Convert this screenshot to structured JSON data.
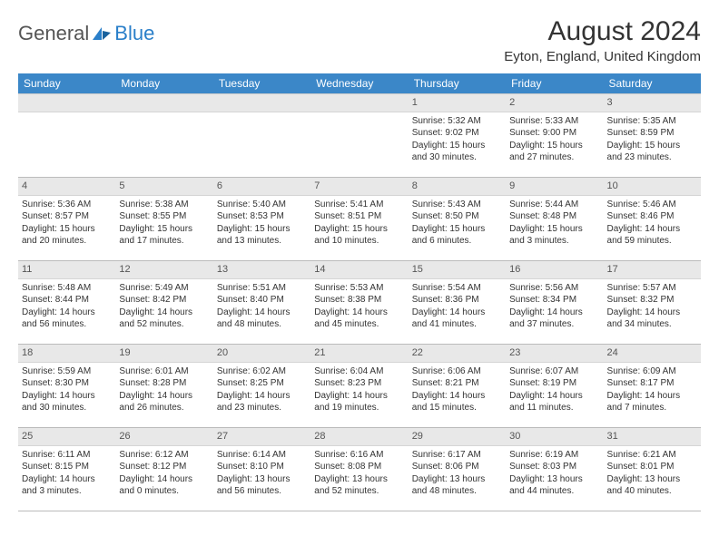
{
  "logo": {
    "general": "General",
    "blue": "Blue"
  },
  "title": "August 2024",
  "location": "Eyton, England, United Kingdom",
  "colors": {
    "header_bg": "#3b87c8",
    "header_text": "#ffffff",
    "daynum_bg": "#e8e8e8",
    "border": "#bbbbbb",
    "logo_blue": "#2a7fc9"
  },
  "weekdays": [
    "Sunday",
    "Monday",
    "Tuesday",
    "Wednesday",
    "Thursday",
    "Friday",
    "Saturday"
  ],
  "weeks": [
    [
      {
        "day": "",
        "sunrise": "",
        "sunset": "",
        "daylight": ""
      },
      {
        "day": "",
        "sunrise": "",
        "sunset": "",
        "daylight": ""
      },
      {
        "day": "",
        "sunrise": "",
        "sunset": "",
        "daylight": ""
      },
      {
        "day": "",
        "sunrise": "",
        "sunset": "",
        "daylight": ""
      },
      {
        "day": "1",
        "sunrise": "Sunrise: 5:32 AM",
        "sunset": "Sunset: 9:02 PM",
        "daylight": "Daylight: 15 hours and 30 minutes."
      },
      {
        "day": "2",
        "sunrise": "Sunrise: 5:33 AM",
        "sunset": "Sunset: 9:00 PM",
        "daylight": "Daylight: 15 hours and 27 minutes."
      },
      {
        "day": "3",
        "sunrise": "Sunrise: 5:35 AM",
        "sunset": "Sunset: 8:59 PM",
        "daylight": "Daylight: 15 hours and 23 minutes."
      }
    ],
    [
      {
        "day": "4",
        "sunrise": "Sunrise: 5:36 AM",
        "sunset": "Sunset: 8:57 PM",
        "daylight": "Daylight: 15 hours and 20 minutes."
      },
      {
        "day": "5",
        "sunrise": "Sunrise: 5:38 AM",
        "sunset": "Sunset: 8:55 PM",
        "daylight": "Daylight: 15 hours and 17 minutes."
      },
      {
        "day": "6",
        "sunrise": "Sunrise: 5:40 AM",
        "sunset": "Sunset: 8:53 PM",
        "daylight": "Daylight: 15 hours and 13 minutes."
      },
      {
        "day": "7",
        "sunrise": "Sunrise: 5:41 AM",
        "sunset": "Sunset: 8:51 PM",
        "daylight": "Daylight: 15 hours and 10 minutes."
      },
      {
        "day": "8",
        "sunrise": "Sunrise: 5:43 AM",
        "sunset": "Sunset: 8:50 PM",
        "daylight": "Daylight: 15 hours and 6 minutes."
      },
      {
        "day": "9",
        "sunrise": "Sunrise: 5:44 AM",
        "sunset": "Sunset: 8:48 PM",
        "daylight": "Daylight: 15 hours and 3 minutes."
      },
      {
        "day": "10",
        "sunrise": "Sunrise: 5:46 AM",
        "sunset": "Sunset: 8:46 PM",
        "daylight": "Daylight: 14 hours and 59 minutes."
      }
    ],
    [
      {
        "day": "11",
        "sunrise": "Sunrise: 5:48 AM",
        "sunset": "Sunset: 8:44 PM",
        "daylight": "Daylight: 14 hours and 56 minutes."
      },
      {
        "day": "12",
        "sunrise": "Sunrise: 5:49 AM",
        "sunset": "Sunset: 8:42 PM",
        "daylight": "Daylight: 14 hours and 52 minutes."
      },
      {
        "day": "13",
        "sunrise": "Sunrise: 5:51 AM",
        "sunset": "Sunset: 8:40 PM",
        "daylight": "Daylight: 14 hours and 48 minutes."
      },
      {
        "day": "14",
        "sunrise": "Sunrise: 5:53 AM",
        "sunset": "Sunset: 8:38 PM",
        "daylight": "Daylight: 14 hours and 45 minutes."
      },
      {
        "day": "15",
        "sunrise": "Sunrise: 5:54 AM",
        "sunset": "Sunset: 8:36 PM",
        "daylight": "Daylight: 14 hours and 41 minutes."
      },
      {
        "day": "16",
        "sunrise": "Sunrise: 5:56 AM",
        "sunset": "Sunset: 8:34 PM",
        "daylight": "Daylight: 14 hours and 37 minutes."
      },
      {
        "day": "17",
        "sunrise": "Sunrise: 5:57 AM",
        "sunset": "Sunset: 8:32 PM",
        "daylight": "Daylight: 14 hours and 34 minutes."
      }
    ],
    [
      {
        "day": "18",
        "sunrise": "Sunrise: 5:59 AM",
        "sunset": "Sunset: 8:30 PM",
        "daylight": "Daylight: 14 hours and 30 minutes."
      },
      {
        "day": "19",
        "sunrise": "Sunrise: 6:01 AM",
        "sunset": "Sunset: 8:28 PM",
        "daylight": "Daylight: 14 hours and 26 minutes."
      },
      {
        "day": "20",
        "sunrise": "Sunrise: 6:02 AM",
        "sunset": "Sunset: 8:25 PM",
        "daylight": "Daylight: 14 hours and 23 minutes."
      },
      {
        "day": "21",
        "sunrise": "Sunrise: 6:04 AM",
        "sunset": "Sunset: 8:23 PM",
        "daylight": "Daylight: 14 hours and 19 minutes."
      },
      {
        "day": "22",
        "sunrise": "Sunrise: 6:06 AM",
        "sunset": "Sunset: 8:21 PM",
        "daylight": "Daylight: 14 hours and 15 minutes."
      },
      {
        "day": "23",
        "sunrise": "Sunrise: 6:07 AM",
        "sunset": "Sunset: 8:19 PM",
        "daylight": "Daylight: 14 hours and 11 minutes."
      },
      {
        "day": "24",
        "sunrise": "Sunrise: 6:09 AM",
        "sunset": "Sunset: 8:17 PM",
        "daylight": "Daylight: 14 hours and 7 minutes."
      }
    ],
    [
      {
        "day": "25",
        "sunrise": "Sunrise: 6:11 AM",
        "sunset": "Sunset: 8:15 PM",
        "daylight": "Daylight: 14 hours and 3 minutes."
      },
      {
        "day": "26",
        "sunrise": "Sunrise: 6:12 AM",
        "sunset": "Sunset: 8:12 PM",
        "daylight": "Daylight: 14 hours and 0 minutes."
      },
      {
        "day": "27",
        "sunrise": "Sunrise: 6:14 AM",
        "sunset": "Sunset: 8:10 PM",
        "daylight": "Daylight: 13 hours and 56 minutes."
      },
      {
        "day": "28",
        "sunrise": "Sunrise: 6:16 AM",
        "sunset": "Sunset: 8:08 PM",
        "daylight": "Daylight: 13 hours and 52 minutes."
      },
      {
        "day": "29",
        "sunrise": "Sunrise: 6:17 AM",
        "sunset": "Sunset: 8:06 PM",
        "daylight": "Daylight: 13 hours and 48 minutes."
      },
      {
        "day": "30",
        "sunrise": "Sunrise: 6:19 AM",
        "sunset": "Sunset: 8:03 PM",
        "daylight": "Daylight: 13 hours and 44 minutes."
      },
      {
        "day": "31",
        "sunrise": "Sunrise: 6:21 AM",
        "sunset": "Sunset: 8:01 PM",
        "daylight": "Daylight: 13 hours and 40 minutes."
      }
    ]
  ]
}
